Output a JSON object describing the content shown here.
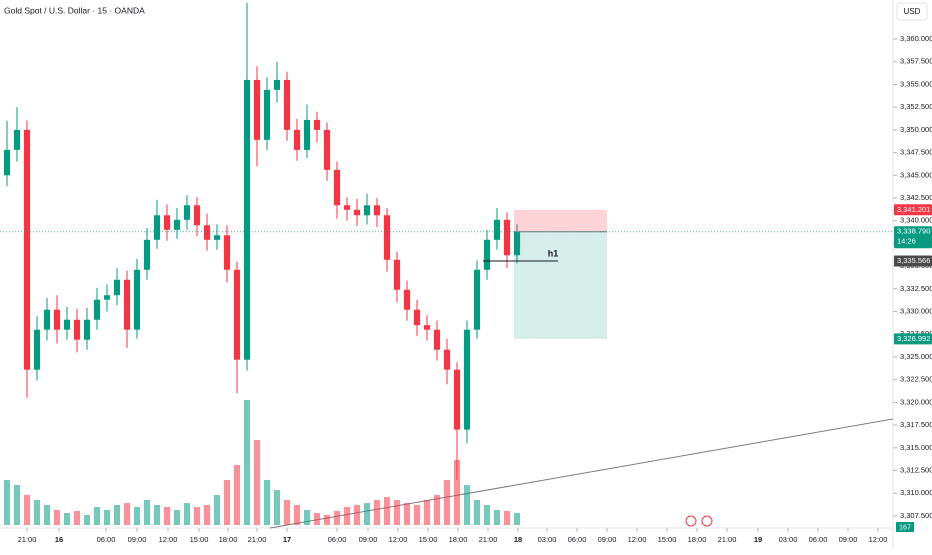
{
  "header": {
    "title": "Gold Spot / U.S. Dollar · 15 · OANDA",
    "currency": "USD"
  },
  "chart_data": {
    "type": "candlestick",
    "open": [
      3345.0,
      3347.8,
      3350.0,
      3323.6,
      3328.0,
      3330.2,
      3328.0,
      3329.1,
      3326.9,
      3329.1,
      3331.3,
      3331.8,
      3333.5,
      3328.0,
      3334.6,
      3337.9,
      3340.6,
      3339.0,
      3340.1,
      3341.7,
      3339.5,
      3337.9,
      3338.4,
      3334.6,
      3324.7,
      3355.5,
      3348.9,
      3354.4,
      3355.5,
      3350.0,
      3347.8,
      3351.1,
      3350.0,
      3345.6,
      3341.7,
      3341.2,
      3340.6,
      3341.7,
      3340.6,
      3335.7,
      3332.4,
      3330.2,
      3328.5,
      3328.0,
      3325.8,
      3323.6,
      3317.0,
      3328.0,
      3334.6,
      3337.9,
      3340.1,
      3336.2
    ],
    "high": [
      3351.0,
      3352.5,
      3351.0,
      3329.5,
      3331.5,
      3331.8,
      3330.5,
      3330.3,
      3330.4,
      3332.6,
      3333.0,
      3334.8,
      3334.5,
      3335.8,
      3339.2,
      3342.3,
      3341.8,
      3341.4,
      3342.8,
      3342.6,
      3340.8,
      3339.6,
      3339.5,
      3335.5,
      3364.0,
      3357.0,
      3355.8,
      3357.5,
      3356.4,
      3351.2,
      3352.8,
      3352.0,
      3350.8,
      3346.5,
      3342.6,
      3342.4,
      3343.0,
      3342.5,
      3341.4,
      3336.6,
      3333.4,
      3331.3,
      3329.6,
      3329.0,
      3327.0,
      3324.4,
      3329.0,
      3335.6,
      3339.0,
      3341.4,
      3340.9,
      3339.6
    ],
    "low": [
      3343.8,
      3346.5,
      3320.5,
      3322.4,
      3326.8,
      3326.5,
      3326.9,
      3325.5,
      3325.8,
      3328.0,
      3330.0,
      3330.7,
      3326.0,
      3327.0,
      3333.5,
      3336.9,
      3337.8,
      3338.0,
      3339.0,
      3338.3,
      3336.7,
      3336.8,
      3333.2,
      3321.0,
      3323.5,
      3346.0,
      3347.8,
      3353.0,
      3348.8,
      3346.6,
      3346.9,
      3348.6,
      3344.4,
      3340.2,
      3340.0,
      3339.4,
      3339.6,
      3339.3,
      3334.4,
      3331.0,
      3329.0,
      3327.3,
      3326.8,
      3324.6,
      3322.0,
      3311.5,
      3315.5,
      3327.0,
      3333.5,
      3336.8,
      3334.8,
      3335.3
    ],
    "close": [
      3347.8,
      3350.0,
      3323.6,
      3328.0,
      3330.2,
      3328.0,
      3329.1,
      3326.9,
      3329.1,
      3331.3,
      3331.8,
      3333.5,
      3328.0,
      3334.6,
      3337.9,
      3340.6,
      3339.0,
      3340.1,
      3341.7,
      3339.5,
      3337.9,
      3338.4,
      3334.6,
      3324.7,
      3355.5,
      3348.9,
      3354.4,
      3355.5,
      3350.0,
      3347.8,
      3351.1,
      3350.0,
      3345.6,
      3341.7,
      3341.2,
      3340.6,
      3341.7,
      3340.6,
      3335.7,
      3332.4,
      3330.2,
      3328.5,
      3328.0,
      3325.8,
      3323.6,
      3317.0,
      3328.0,
      3334.6,
      3337.9,
      3340.1,
      3336.2,
      3338.79
    ],
    "volume": [
      630,
      560,
      420,
      350,
      280,
      210,
      168,
      196,
      140,
      252,
      210,
      280,
      308,
      252,
      350,
      280,
      252,
      210,
      308,
      252,
      280,
      420,
      630,
      840,
      1750,
      1190,
      630,
      490,
      350,
      280,
      210,
      168,
      140,
      196,
      252,
      280,
      308,
      350,
      392,
      350,
      308,
      280,
      350,
      420,
      630,
      910,
      560,
      350,
      280,
      210,
      196,
      167
    ],
    "volume_lim": [
      0,
      7350
    ],
    "up_color": "#089981",
    "down_color": "#f23645",
    "xlim": [
      -0.7,
      88.6
    ],
    "ylim": [
      3306.5,
      3364.3
    ],
    "yticks": [
      {
        "value": 3307.5,
        "label": "3,307.500"
      },
      {
        "value": 3310,
        "label": "3,310.000"
      },
      {
        "value": 3312.5,
        "label": "3,312.500"
      },
      {
        "value": 3315,
        "label": "3,315.000"
      },
      {
        "value": 3317.5,
        "label": "3,317.500"
      },
      {
        "value": 3320,
        "label": "3,320.000"
      },
      {
        "value": 3322.5,
        "label": "3,322.500"
      },
      {
        "value": 3325,
        "label": "3,325.000"
      },
      {
        "value": 3327.5,
        "label": "3,327.500"
      },
      {
        "value": 3330,
        "label": "3,330.000"
      },
      {
        "value": 3332.5,
        "label": "3,332.500"
      },
      {
        "value": 3335,
        "label": "3,335.000"
      },
      {
        "value": 3337.5,
        "label": "3,337.500"
      },
      {
        "value": 3340,
        "label": "3,340.000"
      },
      {
        "value": 3342.5,
        "label": "3,342.500"
      },
      {
        "value": 3345,
        "label": "3,345.000"
      },
      {
        "value": 3347.5,
        "label": "3,347.500"
      },
      {
        "value": 3350,
        "label": "3,350.000"
      },
      {
        "value": 3352.5,
        "label": "3,352.500"
      },
      {
        "value": 3355,
        "label": "3,355.000"
      },
      {
        "value": 3357.5,
        "label": "3,357.500"
      },
      {
        "value": 3360,
        "label": "3,360.000"
      }
    ],
    "xticks": [
      {
        "value": 2,
        "label": "21:00"
      },
      {
        "value": 5.2,
        "label": "16"
      },
      {
        "value": 9.9,
        "label": "06:00"
      },
      {
        "value": 13,
        "label": "09:00"
      },
      {
        "value": 16.1,
        "label": "12:00"
      },
      {
        "value": 19.2,
        "label": "15:00"
      },
      {
        "value": 22.1,
        "label": "18:00"
      },
      {
        "value": 25,
        "label": "21:00"
      },
      {
        "value": 28,
        "label": "17"
      },
      {
        "value": 33,
        "label": "06:00"
      },
      {
        "value": 36.1,
        "label": "09:00"
      },
      {
        "value": 39.1,
        "label": "12:00"
      },
      {
        "value": 42.1,
        "label": "15:00"
      },
      {
        "value": 45.1,
        "label": "18:00"
      },
      {
        "value": 48.1,
        "label": "21:00"
      },
      {
        "value": 51.1,
        "label": "18"
      },
      {
        "value": 54,
        "label": "03:00"
      },
      {
        "value": 57,
        "label": "06:00"
      },
      {
        "value": 60,
        "label": "09:00"
      },
      {
        "value": 63,
        "label": "12:00"
      },
      {
        "value": 66,
        "label": "15:00"
      },
      {
        "value": 69,
        "label": "18:00"
      },
      {
        "value": 72,
        "label": "21:00"
      },
      {
        "value": 75.1,
        "label": "19"
      },
      {
        "value": 78.1,
        "label": "03:00"
      },
      {
        "value": 81.1,
        "label": "06:00"
      },
      {
        "value": 84.1,
        "label": "09:00"
      },
      {
        "value": 87.1,
        "label": "12:00"
      }
    ],
    "price_labels": [
      {
        "value": 3341.201,
        "label": "3,341.201",
        "color": "#f23645"
      },
      {
        "value": 3338.79,
        "label": "3,338.790",
        "color": "#089981"
      },
      {
        "value": 3335.566,
        "label": "3,335.566",
        "color": "#4a4a4a"
      },
      {
        "value": 3326.992,
        "label": "3,326.992",
        "color": "#089981"
      }
    ],
    "countdown": "14:26",
    "level_label": "h1"
  }
}
